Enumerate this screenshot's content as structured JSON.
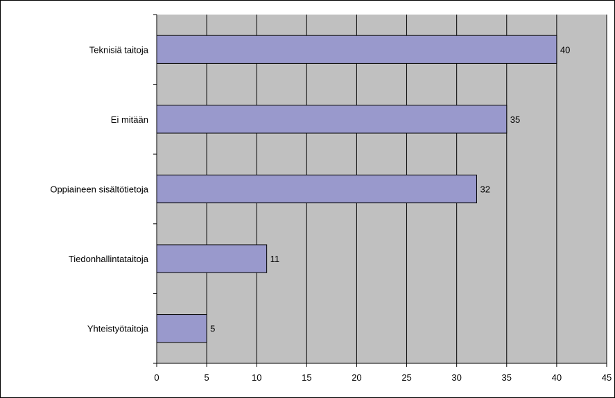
{
  "chart_data": {
    "type": "bar",
    "orientation": "horizontal",
    "categories": [
      "Teknisiä taitoja",
      "Ei mitään",
      "Oppiaineen sisältötietoja",
      "Tiedonhallintataitoja",
      "Yhteistyötaitoja"
    ],
    "values": [
      40,
      35,
      32,
      11,
      5
    ],
    "data_labels": [
      "40",
      "35",
      "32",
      "11",
      "5"
    ],
    "x_ticks": [
      0,
      5,
      10,
      15,
      20,
      25,
      30,
      35,
      40,
      45
    ],
    "x_tick_labels": [
      "0",
      "5",
      "10",
      "15",
      "20",
      "25",
      "30",
      "35",
      "40",
      "45"
    ],
    "xlim": [
      0,
      45
    ],
    "grid": true,
    "legend": "none",
    "colors": {
      "plot_background": "#c0c0c0",
      "bar_fill": "#9999cc",
      "bar_stroke": "#000000",
      "gridline": "#000000"
    }
  }
}
